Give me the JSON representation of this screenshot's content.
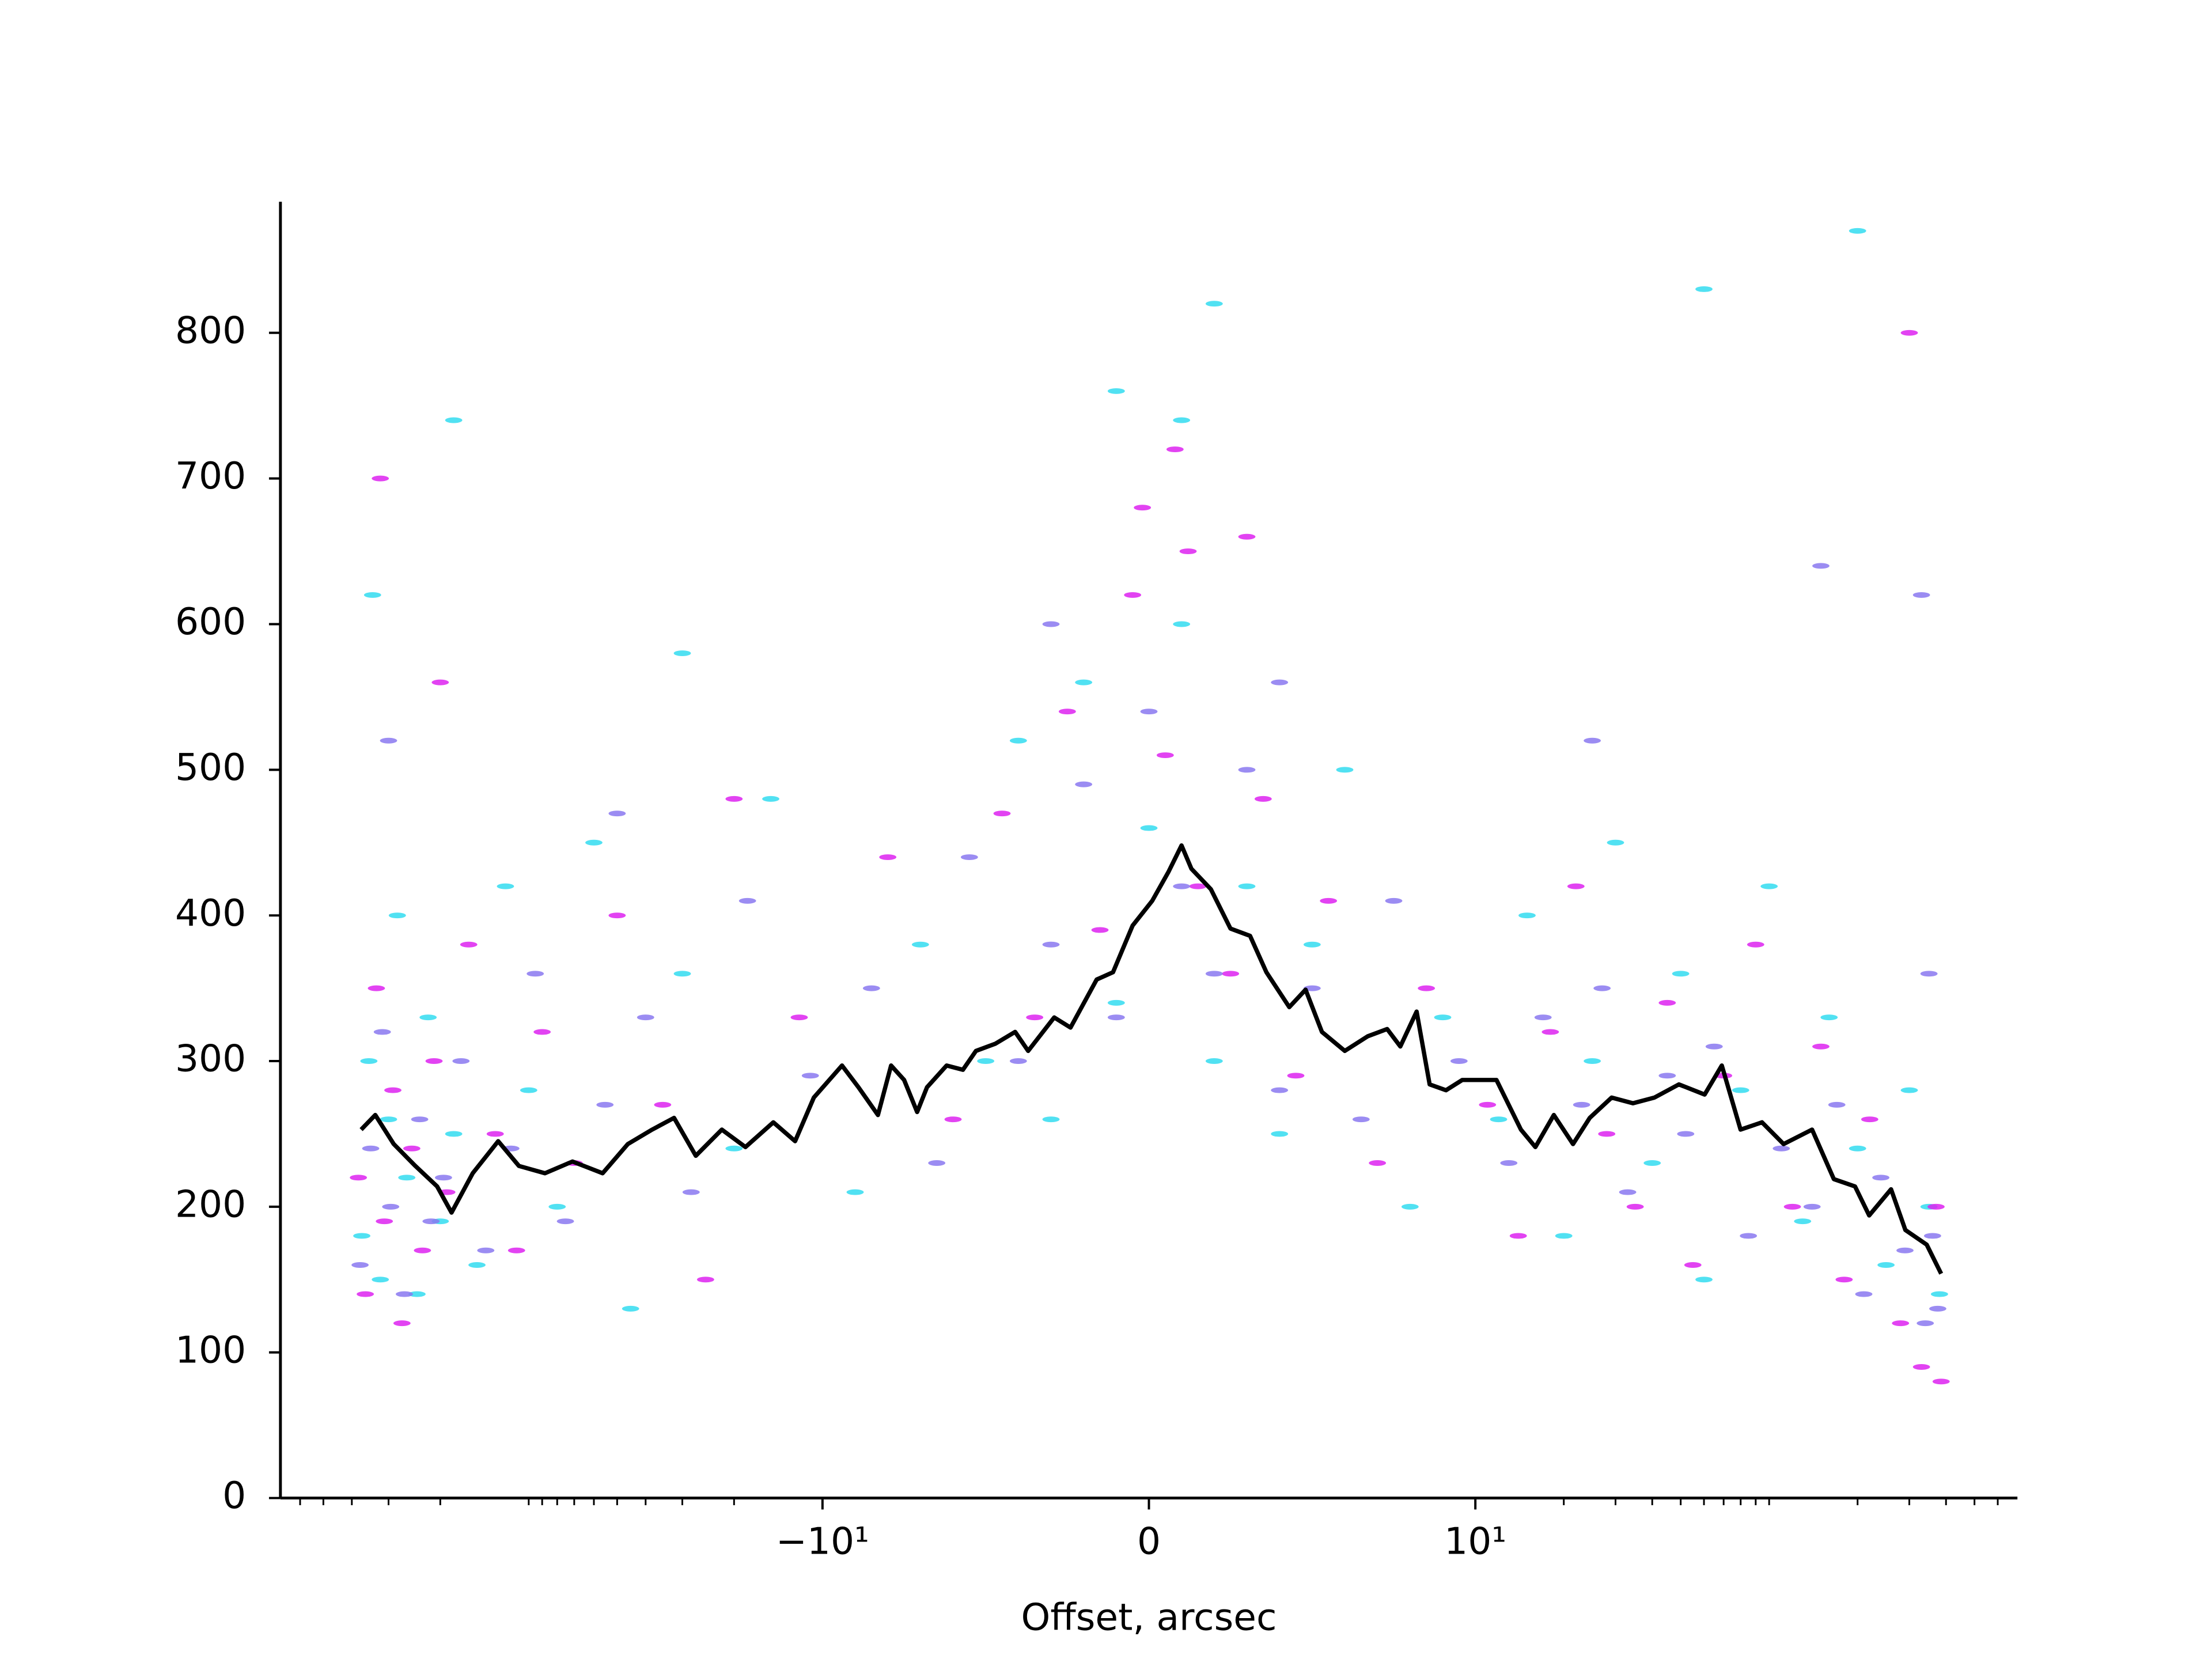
{
  "chart_data": {
    "type": "scatter",
    "xlabel": "Offset, arcsec",
    "xscale": "symlog",
    "linthresh": 10,
    "xlim": [
      -700,
      700
    ],
    "ylim": [
      0,
      890
    ],
    "xticks": [
      {
        "value": -10,
        "label": "−10¹"
      },
      0,
      {
        "value": 10,
        "label": "10¹"
      }
    ],
    "xminorticks": [
      -600,
      -500,
      -400,
      -300,
      -200,
      -100,
      -90,
      -80,
      -70,
      -60,
      -50,
      -40,
      -30,
      -20,
      20,
      30,
      40,
      50,
      60,
      70,
      80,
      90,
      100,
      200,
      300,
      400,
      500,
      600
    ],
    "yticks": [
      0,
      100,
      200,
      300,
      400,
      500,
      600,
      700,
      800
    ],
    "series": [
      {
        "color": "#33dcf0",
        "x": [
          -370,
          -350,
          -320,
          -300,
          -280,
          -260,
          -240,
          -220,
          -200,
          -180,
          -150,
          -120,
          -100,
          -80,
          -60,
          -45,
          -30,
          -20,
          -15,
          -9,
          -7,
          -5,
          -4,
          -3,
          -2,
          -1,
          0,
          1,
          2,
          3,
          4,
          5,
          6,
          8,
          9,
          12,
          15,
          20,
          25,
          30,
          40,
          50,
          60,
          80,
          100,
          130,
          160,
          200,
          250,
          300,
          350,
          380,
          -340,
          -30,
          -1,
          1,
          60,
          200,
          -180,
          2
        ],
        "values": [
          180,
          300,
          150,
          260,
          400,
          220,
          140,
          330,
          190,
          250,
          160,
          420,
          280,
          200,
          450,
          130,
          360,
          240,
          480,
          210,
          380,
          300,
          520,
          260,
          560,
          340,
          460,
          600,
          300,
          420,
          250,
          380,
          500,
          200,
          330,
          260,
          400,
          180,
          300,
          450,
          230,
          360,
          150,
          280,
          420,
          190,
          330,
          240,
          160,
          280,
          200,
          140,
          620,
          580,
          760,
          740,
          830,
          870,
          740,
          820
        ]
      },
      {
        "color": "#dd22f0",
        "x": [
          -380,
          -360,
          -330,
          -310,
          -290,
          -270,
          -250,
          -230,
          -210,
          -190,
          -160,
          -130,
          -110,
          -90,
          -70,
          -50,
          -35,
          -25,
          -12,
          -8,
          -6,
          -4.5,
          -3.5,
          -2.5,
          -1.5,
          -0.5,
          0.5,
          1.5,
          2.5,
          3.5,
          4.5,
          5.5,
          7,
          8.5,
          11,
          14,
          18,
          22,
          28,
          35,
          45,
          55,
          70,
          90,
          120,
          150,
          180,
          220,
          280,
          330,
          370,
          385,
          -320,
          -0.2,
          0.8,
          1.2,
          -200,
          300,
          -20,
          3
        ],
        "values": [
          220,
          140,
          350,
          190,
          280,
          120,
          240,
          170,
          300,
          210,
          380,
          250,
          170,
          320,
          230,
          400,
          270,
          150,
          330,
          440,
          260,
          470,
          330,
          540,
          390,
          620,
          510,
          420,
          360,
          480,
          290,
          410,
          230,
          350,
          270,
          180,
          320,
          420,
          250,
          200,
          340,
          160,
          290,
          380,
          200,
          310,
          150,
          260,
          120,
          90,
          200,
          80,
          700,
          680,
          720,
          650,
          560,
          800,
          480,
          660
        ]
      },
      {
        "color": "#8a78f0",
        "x": [
          -375,
          -345,
          -315,
          -295,
          -265,
          -235,
          -215,
          -195,
          -170,
          -140,
          -115,
          -95,
          -75,
          -55,
          -40,
          -28,
          -18,
          -11,
          -8.5,
          -6.5,
          -5.5,
          -4,
          -3,
          -2,
          -1,
          0,
          1,
          2,
          3,
          4,
          5,
          6.5,
          7.5,
          9.5,
          13,
          17,
          23,
          27,
          33,
          45,
          52,
          65,
          85,
          110,
          140,
          170,
          210,
          240,
          290,
          340,
          360,
          375,
          -300,
          -50,
          -3,
          4,
          25,
          150,
          330,
          350
        ],
        "values": [
          160,
          240,
          320,
          200,
          140,
          260,
          190,
          220,
          300,
          170,
          240,
          360,
          190,
          270,
          330,
          210,
          410,
          290,
          350,
          230,
          440,
          300,
          380,
          490,
          330,
          540,
          420,
          360,
          500,
          280,
          350,
          260,
          410,
          300,
          230,
          330,
          270,
          350,
          210,
          290,
          250,
          310,
          180,
          240,
          200,
          270,
          140,
          220,
          170,
          120,
          180,
          130,
          520,
          470,
          600,
          560,
          520,
          640,
          620,
          360
        ]
      }
    ],
    "line": {
      "color": "#000000",
      "x": [
        -372,
        -333,
        -288,
        -243,
        -205,
        -183,
        -155,
        -127,
        -108,
        -88,
        -71,
        -56,
        -46,
        -38,
        -32,
        -27,
        -22,
        -18.3,
        -14.7,
        -12.4,
        -10.7,
        -9.4,
        -8.9,
        -8.3,
        -7.9,
        -7.5,
        -7.1,
        -6.8,
        -6.2,
        -5.7,
        -5.3,
        -4.7,
        -4.1,
        -3.7,
        -2.9,
        -2.4,
        -1.6,
        -1.1,
        -0.5,
        0.1,
        0.6,
        1.0,
        1.3,
        1.9,
        2.5,
        3.1,
        3.6,
        4.3,
        4.8,
        5.3,
        6.0,
        6.7,
        7.3,
        7.7,
        8.2,
        8.6,
        9.1,
        9.6,
        11.8,
        14.3,
        16.0,
        18.5,
        21.5,
        24.5,
        29.1,
        34.4,
        40.7,
        49.3,
        60.3,
        69.0,
        79.9,
        94.6,
        112,
        140,
        166,
        196,
        219,
        260,
        291,
        344,
        385
      ],
      "values": [
        253,
        263,
        243,
        228,
        214,
        196,
        223,
        245,
        228,
        223,
        231,
        223,
        243,
        253,
        261,
        235,
        253,
        241,
        258,
        245,
        275,
        297,
        282,
        263,
        297,
        287,
        265,
        282,
        297,
        294,
        307,
        312,
        320,
        307,
        330,
        323,
        356,
        361,
        393,
        410,
        430,
        448,
        432,
        418,
        391,
        386,
        361,
        337,
        349,
        320,
        307,
        317,
        322,
        310,
        334,
        284,
        280,
        287,
        287,
        253,
        241,
        263,
        243,
        261,
        275,
        271,
        275,
        284,
        277,
        297,
        253,
        258,
        243,
        253,
        219,
        214,
        194,
        212,
        184,
        174,
        154
      ]
    }
  }
}
